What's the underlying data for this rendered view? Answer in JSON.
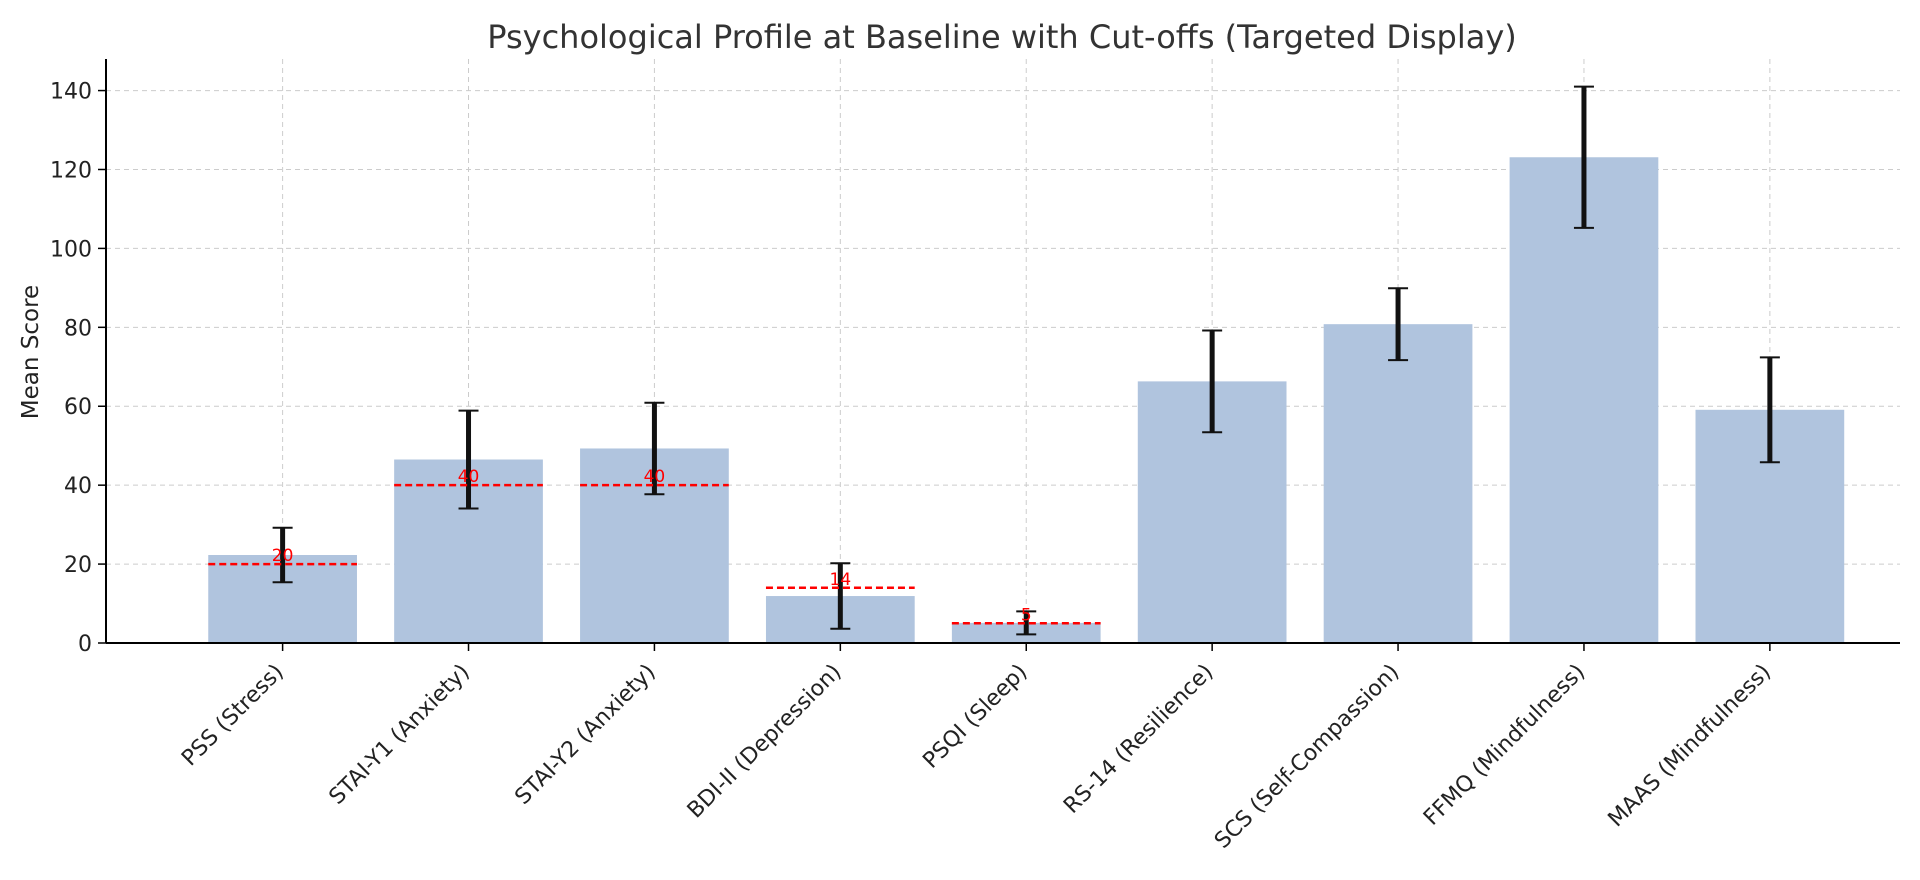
{
  "chart_data": {
    "type": "bar",
    "title": "Psychological Profile at Baseline with Cut-offs (Targeted Display)",
    "xlabel": "",
    "ylabel": "Mean Score",
    "ylim": [
      0,
      148
    ],
    "yticks": [
      0,
      20,
      40,
      60,
      80,
      100,
      120,
      140
    ],
    "grid": true,
    "categories": [
      "PSS (Stress)",
      "STAI-Y1 (Anxiety)",
      "STAI-Y2 (Anxiety)",
      "BDI-II (Depression)",
      "PSQI (Sleep)",
      "RS-14 (Resilience)",
      "SCS (Self-Compassion)",
      "FFMQ (Mindfulness)",
      "MAAS (Mindfulness)"
    ],
    "values": [
      22.3,
      46.5,
      49.3,
      11.9,
      5.1,
      66.3,
      80.8,
      123.1,
      59.1
    ],
    "errors": [
      6.9,
      12.4,
      11.6,
      8.3,
      2.9,
      12.9,
      9.1,
      17.9,
      13.3
    ],
    "cutoffs": [
      20,
      40,
      40,
      14,
      5,
      null,
      null,
      null,
      null
    ],
    "colors": {
      "bar": "#b0c4de",
      "error": "#111111",
      "cutoff": "#ff0000"
    }
  }
}
